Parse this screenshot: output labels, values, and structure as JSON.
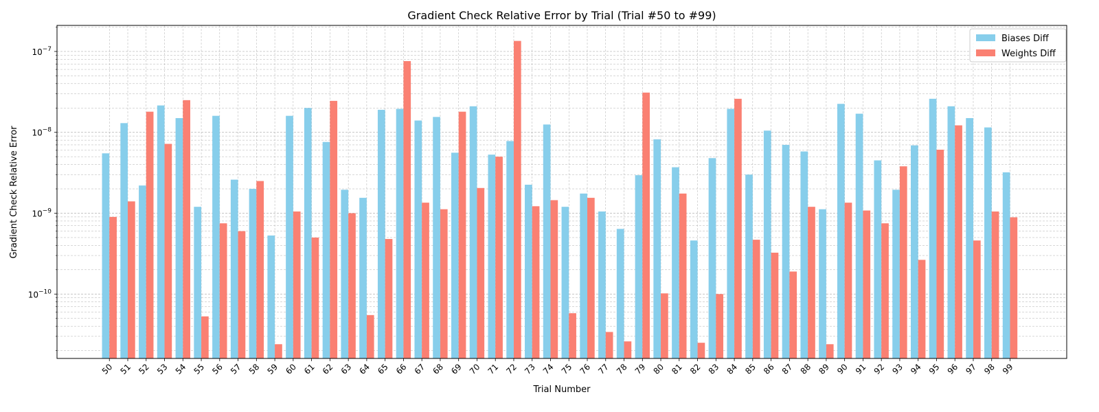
{
  "chart_data": {
    "type": "bar",
    "title": "Gradient Check Relative Error by Trial (Trial #50 to #99)",
    "xlabel": "Trial Number",
    "ylabel": "Gradient Check Relative Error",
    "y_scale": "log",
    "ylim": [
      1.6e-11,
      2.1e-07
    ],
    "y_major_ticks": [
      {
        "value": 1e-10,
        "mantissa": "10",
        "exponent": "−10"
      },
      {
        "value": 1e-09,
        "mantissa": "10",
        "exponent": "−9"
      },
      {
        "value": 1e-08,
        "mantissa": "10",
        "exponent": "−8"
      },
      {
        "value": 1e-07,
        "mantissa": "10",
        "exponent": "−7"
      }
    ],
    "grid": true,
    "legend_position": "top-right",
    "categories": [
      "50",
      "51",
      "52",
      "53",
      "54",
      "55",
      "56",
      "57",
      "58",
      "59",
      "60",
      "61",
      "62",
      "63",
      "64",
      "65",
      "66",
      "67",
      "68",
      "69",
      "70",
      "71",
      "72",
      "73",
      "74",
      "75",
      "76",
      "77",
      "78",
      "79",
      "80",
      "81",
      "82",
      "83",
      "84",
      "85",
      "86",
      "87",
      "88",
      "89",
      "90",
      "91",
      "92",
      "93",
      "94",
      "95",
      "96",
      "97",
      "98",
      "99"
    ],
    "series": [
      {
        "name": "Biases Diff",
        "color": "#87ceeb",
        "values": [
          5.5e-09,
          1.3e-08,
          2.2e-09,
          2.15e-08,
          1.5e-08,
          1.2e-09,
          1.6e-08,
          2.6e-09,
          2e-09,
          5.3e-10,
          1.6e-08,
          2e-08,
          7.6e-09,
          1.95e-09,
          1.55e-09,
          1.9e-08,
          1.95e-08,
          1.4e-08,
          1.55e-08,
          5.6e-09,
          2.1e-08,
          5.3e-09,
          7.8e-09,
          2.25e-09,
          1.25e-08,
          1.2e-09,
          1.75e-09,
          1.05e-09,
          6.4e-10,
          2.95e-09,
          8.2e-09,
          3.7e-09,
          4.6e-10,
          4.8e-09,
          1.95e-08,
          3e-09,
          1.05e-08,
          7e-09,
          5.8e-09,
          1.12e-09,
          2.25e-08,
          1.7e-08,
          4.5e-09,
          1.95e-09,
          6.9e-09,
          2.6e-08,
          2.1e-08,
          1.5e-08,
          1.15e-08,
          3.2e-09
        ]
      },
      {
        "name": "Weights Diff",
        "color": "#fa8072",
        "values": [
          9e-10,
          1.4e-09,
          1.8e-08,
          7.2e-09,
          2.5e-08,
          5.3e-11,
          7.5e-10,
          6e-10,
          2.5e-09,
          2.4e-11,
          1.05e-09,
          5e-10,
          2.45e-08,
          1e-09,
          5.5e-11,
          4.8e-10,
          7.6e-08,
          1.35e-09,
          1.12e-09,
          1.8e-08,
          2.05e-09,
          5e-09,
          1.35e-07,
          1.22e-09,
          1.45e-09,
          5.8e-11,
          1.55e-09,
          3.4e-11,
          2.6e-11,
          3.1e-08,
          1.02e-10,
          1.75e-09,
          2.5e-11,
          1e-10,
          2.6e-08,
          4.7e-10,
          3.25e-10,
          1.9e-10,
          1.2e-09,
          2.4e-11,
          1.35e-09,
          1.08e-09,
          7.5e-10,
          3.8e-09,
          2.65e-10,
          6.1e-09,
          1.22e-08,
          4.6e-10,
          1.05e-09,
          8.9e-10
        ]
      }
    ]
  }
}
